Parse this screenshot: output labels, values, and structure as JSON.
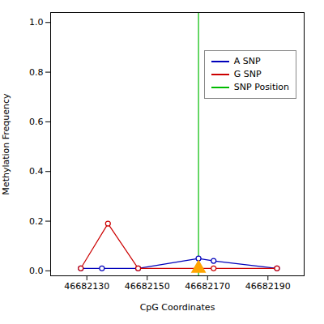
{
  "chart_data": {
    "type": "line",
    "xlabel": "CpG Coordinates",
    "ylabel": "Methylation Frequency",
    "series": [
      {
        "name": "SNP Position",
        "type": "rule",
        "color": "#00bb00",
        "x": [
          46682167
        ]
      },
      {
        "name": "A SNP",
        "type": "line",
        "color": "#0000bb",
        "marker": "circle",
        "x": [
          46682128,
          46682135,
          46682147,
          46682167,
          46682172,
          46682193
        ],
        "values": [
          0.01,
          0.01,
          0.01,
          0.05,
          0.04,
          0.01
        ]
      },
      {
        "name": "G SNP",
        "type": "line",
        "color": "#cc0000",
        "marker": "circle",
        "x": [
          46682128,
          46682137,
          46682147,
          46682167,
          46682172,
          46682193
        ],
        "values": [
          0.01,
          0.19,
          0.01,
          0.01,
          0.01,
          0.01
        ]
      },
      {
        "type": "scatter",
        "marker": "triangle",
        "color": "#ffa500",
        "x": [
          46682167
        ],
        "values": [
          0.01
        ]
      }
    ],
    "legend_order": [
      "A SNP",
      "G SNP",
      "SNP Position"
    ],
    "xlim": [
      46682118,
      46682202
    ],
    "ylim": [
      -0.02,
      1.04
    ],
    "xticks": [
      46682130,
      46682150,
      46682170,
      46682190
    ],
    "yticks": [
      {
        "value": 0.0,
        "label": "0.0"
      },
      0.2,
      0.4,
      0.6,
      0.8,
      {
        "value": 1.0,
        "label": "1.0"
      }
    ],
    "legend": "right"
  }
}
